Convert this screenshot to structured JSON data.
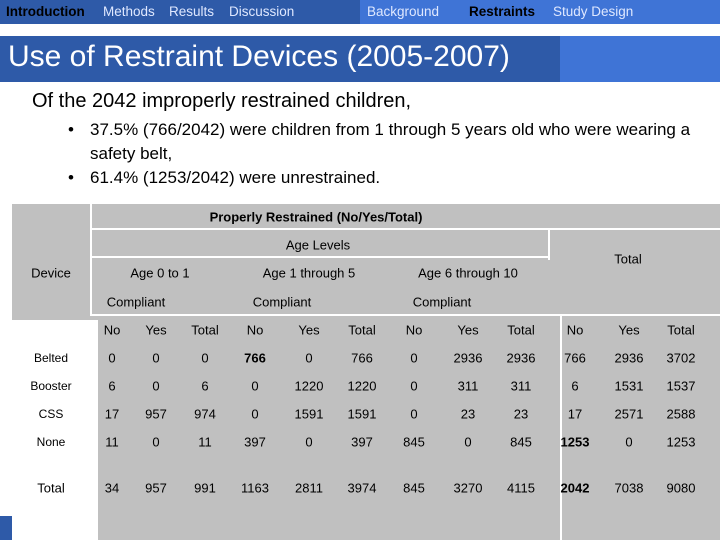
{
  "nav": {
    "items": [
      {
        "label": "Introduction",
        "active": true
      },
      {
        "label": "Methods",
        "active": false
      },
      {
        "label": "Results",
        "active": false
      },
      {
        "label": "Discussion",
        "active": false
      },
      {
        "label": "Background",
        "active": false
      },
      {
        "label": "Restraints",
        "active": true
      },
      {
        "label": "Study Design",
        "active": false
      }
    ]
  },
  "slide": {
    "title": "Use of Restraint Devices (2005-2007)",
    "lead": "Of the 2042 improperly restrained children,",
    "bullets": [
      "37.5% (766/2042) were children from 1 through 5 years old who were wearing a safety belt,",
      "61.4% (1253/2042) were unrestrained."
    ]
  },
  "table": {
    "header_main": "Properly Restrained (No/Yes/Total)",
    "header_age_levels": "Age Levels",
    "header_device": "Device",
    "header_total": "Total",
    "age_groups": [
      "Age 0 to 1",
      "Age 1 through 5",
      "Age 6 through 10"
    ],
    "compliant_label": "Compliant",
    "sub_cols": [
      "No",
      "Yes",
      "Total",
      "No",
      "Yes",
      "Total",
      "No",
      "Yes",
      "Total",
      "No",
      "Yes",
      "Total"
    ],
    "rows": [
      {
        "device": "Belted",
        "values": [
          "0",
          "0",
          "0",
          "766",
          "0",
          "766",
          "0",
          "2936",
          "2936",
          "766",
          "2936",
          "3702"
        ]
      },
      {
        "device": "Booster",
        "values": [
          "6",
          "0",
          "6",
          "0",
          "1220",
          "1220",
          "0",
          "311",
          "311",
          "6",
          "1531",
          "1537"
        ]
      },
      {
        "device": "CSS",
        "values": [
          "17",
          "957",
          "974",
          "0",
          "1591",
          "1591",
          "0",
          "23",
          "23",
          "17",
          "2571",
          "2588"
        ]
      },
      {
        "device": "None",
        "values": [
          "11",
          "0",
          "11",
          "397",
          "0",
          "397",
          "845",
          "0",
          "845",
          "1253",
          "0",
          "1253"
        ]
      },
      {
        "device": "Total",
        "values": [
          "34",
          "957",
          "991",
          "1163",
          "2811",
          "3974",
          "845",
          "3270",
          "4115",
          "2042",
          "7038",
          "9080"
        ]
      }
    ]
  }
}
